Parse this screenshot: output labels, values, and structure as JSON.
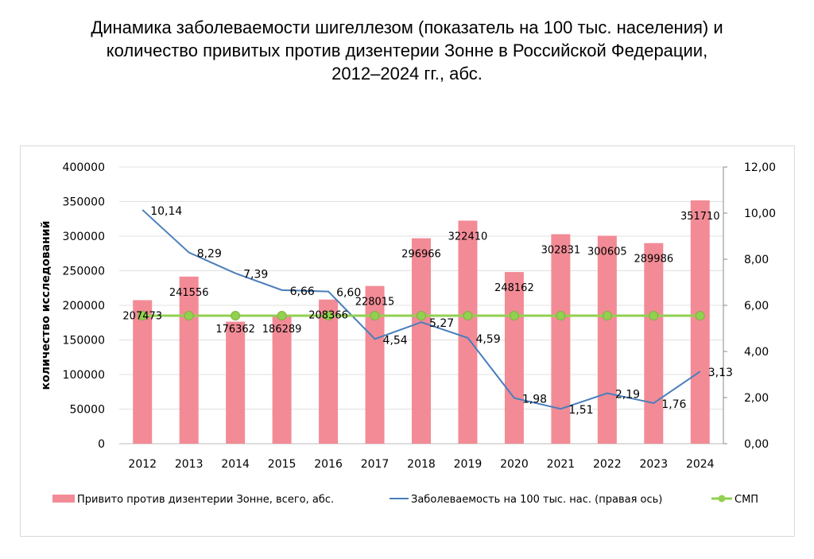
{
  "title": [
    "Динамика заболеваемости шигеллезом (показатель на 100 тыс. населения) и",
    "количество привитых против дизентерии Зонне в Российской Федерации,",
    "2012–2024 гг., абс."
  ],
  "chart_data": {
    "type": "bar+line",
    "categories": [
      "2012",
      "2013",
      "2014",
      "2015",
      "2016",
      "2017",
      "2018",
      "2019",
      "2020",
      "2021",
      "2022",
      "2023",
      "2024"
    ],
    "series": [
      {
        "name": "Привито против дизентерии Зонне, всего, абс.",
        "type": "bar",
        "axis": "left",
        "color": "#f28b96",
        "values": [
          207473,
          241556,
          176362,
          186289,
          208366,
          228015,
          296966,
          322410,
          248162,
          302831,
          300605,
          289986,
          351710
        ],
        "labels": [
          "207473",
          "241556",
          "176362",
          "186289",
          "208366",
          "228015",
          "296966",
          "322410",
          "248162",
          "302831",
          "300605",
          "289986",
          "351710"
        ]
      },
      {
        "name": "Заболеваемость на 100 тыс. нас. (правая ось)",
        "type": "line",
        "axis": "right",
        "color": "#4a7ebb",
        "values": [
          10.14,
          8.29,
          7.39,
          6.66,
          6.6,
          4.54,
          5.27,
          4.59,
          1.98,
          1.51,
          2.19,
          1.76,
          3.13
        ],
        "labels": [
          "10,14",
          "8,29",
          "7,39",
          "6,66",
          "6,60",
          "4,54",
          "5,27",
          "4,59",
          "1,98",
          "1,51",
          "2,19",
          "1,76",
          "3,13"
        ]
      },
      {
        "name": "СМП",
        "type": "line-markers",
        "axis": "right",
        "color": "#92d050",
        "values": [
          5.55,
          5.55,
          5.55,
          5.55,
          5.55,
          5.55,
          5.55,
          5.55,
          5.55,
          5.55,
          5.55,
          5.55,
          5.55
        ]
      }
    ],
    "ylabel": "количество исследований",
    "ylim": [
      0,
      400000
    ],
    "yticks": [
      "0",
      "50000",
      "100000",
      "150000",
      "200000",
      "250000",
      "300000",
      "350000",
      "400000"
    ],
    "y2lim": [
      0,
      12
    ],
    "y2ticks": [
      "0,00",
      "2,00",
      "4,00",
      "6,00",
      "8,00",
      "10,00",
      "12,00"
    ],
    "grid": true,
    "legend": "bottom"
  }
}
